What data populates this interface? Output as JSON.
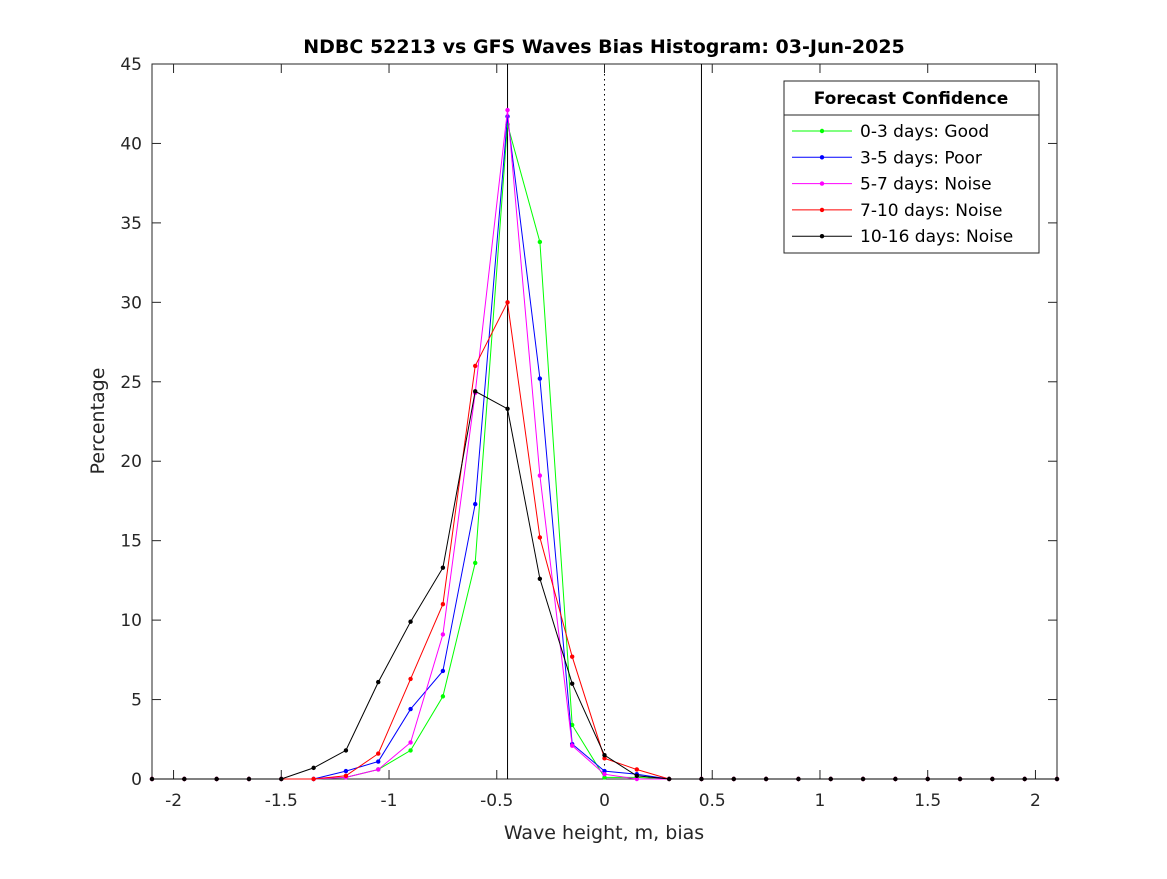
{
  "chart_data": {
    "type": "line",
    "title": "NDBC 52213 vs GFS Waves Bias Histogram: 03-Jun-2025",
    "xlabel": "Wave height, m, bias",
    "ylabel": "Percentage",
    "xlim": [
      -2.1,
      2.1
    ],
    "ylim": [
      0,
      45
    ],
    "x_ticks": [
      -2,
      -1.5,
      -1,
      -0.5,
      0,
      0.5,
      1,
      1.5,
      2
    ],
    "x_tick_labels": [
      "-2",
      "-1.5",
      "-1",
      "-0.5",
      "0",
      "0.5",
      "1",
      "1.5",
      "2"
    ],
    "y_ticks": [
      0,
      5,
      10,
      15,
      20,
      25,
      30,
      35,
      40,
      45
    ],
    "y_tick_labels": [
      "0",
      "5",
      "10",
      "15",
      "20",
      "25",
      "30",
      "35",
      "40",
      "45"
    ],
    "grid": false,
    "reference_lines": [
      {
        "x": -0.45,
        "style": "solid",
        "color": "#000000"
      },
      {
        "x": 0,
        "style": "dotted",
        "color": "#000000"
      },
      {
        "x": 0.45,
        "style": "solid",
        "color": "#000000"
      }
    ],
    "legend": {
      "title": "Forecast Confidence",
      "placement": "top-right"
    },
    "x": [
      -2.1,
      -1.95,
      -1.8,
      -1.65,
      -1.5,
      -1.35,
      -1.2,
      -1.05,
      -0.9,
      -0.75,
      -0.6,
      -0.45,
      -0.3,
      -0.15,
      0,
      0.15,
      0.3,
      0.45,
      0.6,
      0.75,
      0.9,
      1.05,
      1.2,
      1.35,
      1.5,
      1.65,
      1.8,
      1.95,
      2.1
    ],
    "series": [
      {
        "name": "0-3 days: Good",
        "color": "#00ff00",
        "values": [
          0,
          0,
          0,
          0,
          0,
          0,
          0.1,
          0.6,
          1.8,
          5.2,
          13.6,
          41.2,
          33.8,
          3.4,
          0.1,
          0.1,
          0,
          0,
          0,
          0,
          0,
          0,
          0,
          0,
          0,
          0,
          0,
          0,
          0
        ]
      },
      {
        "name": "3-5 days: Poor",
        "color": "#0000ff",
        "values": [
          0,
          0,
          0,
          0,
          0,
          0,
          0.5,
          1.1,
          4.4,
          6.8,
          17.3,
          41.7,
          25.2,
          2.2,
          0.5,
          0.3,
          0,
          0,
          0,
          0,
          0,
          0,
          0,
          0,
          0,
          0,
          0,
          0,
          0
        ]
      },
      {
        "name": "5-7 days: Noise",
        "color": "#ff00ff",
        "values": [
          0,
          0,
          0,
          0,
          0,
          0,
          0.1,
          0.6,
          2.3,
          9.1,
          24.3,
          42.1,
          19.1,
          2.1,
          0.3,
          0,
          0,
          0,
          0,
          0,
          0,
          0,
          0,
          0,
          0,
          0,
          0,
          0,
          0
        ]
      },
      {
        "name": "7-10 days: Noise",
        "color": "#ff0000",
        "values": [
          0,
          0,
          0,
          0,
          0,
          0,
          0.2,
          1.6,
          6.3,
          11.0,
          26.0,
          30.0,
          15.2,
          7.7,
          1.3,
          0.6,
          0,
          0,
          0,
          0,
          0,
          0,
          0,
          0,
          0,
          0,
          0,
          0,
          0
        ]
      },
      {
        "name": "10-16 days: Noise",
        "color": "#000000",
        "values": [
          0,
          0,
          0,
          0,
          0,
          0.7,
          1.8,
          6.1,
          9.9,
          13.3,
          24.4,
          23.3,
          12.6,
          6.0,
          1.5,
          0.2,
          0,
          0,
          0,
          0,
          0,
          0,
          0,
          0,
          0,
          0,
          0,
          0,
          0
        ]
      }
    ]
  }
}
